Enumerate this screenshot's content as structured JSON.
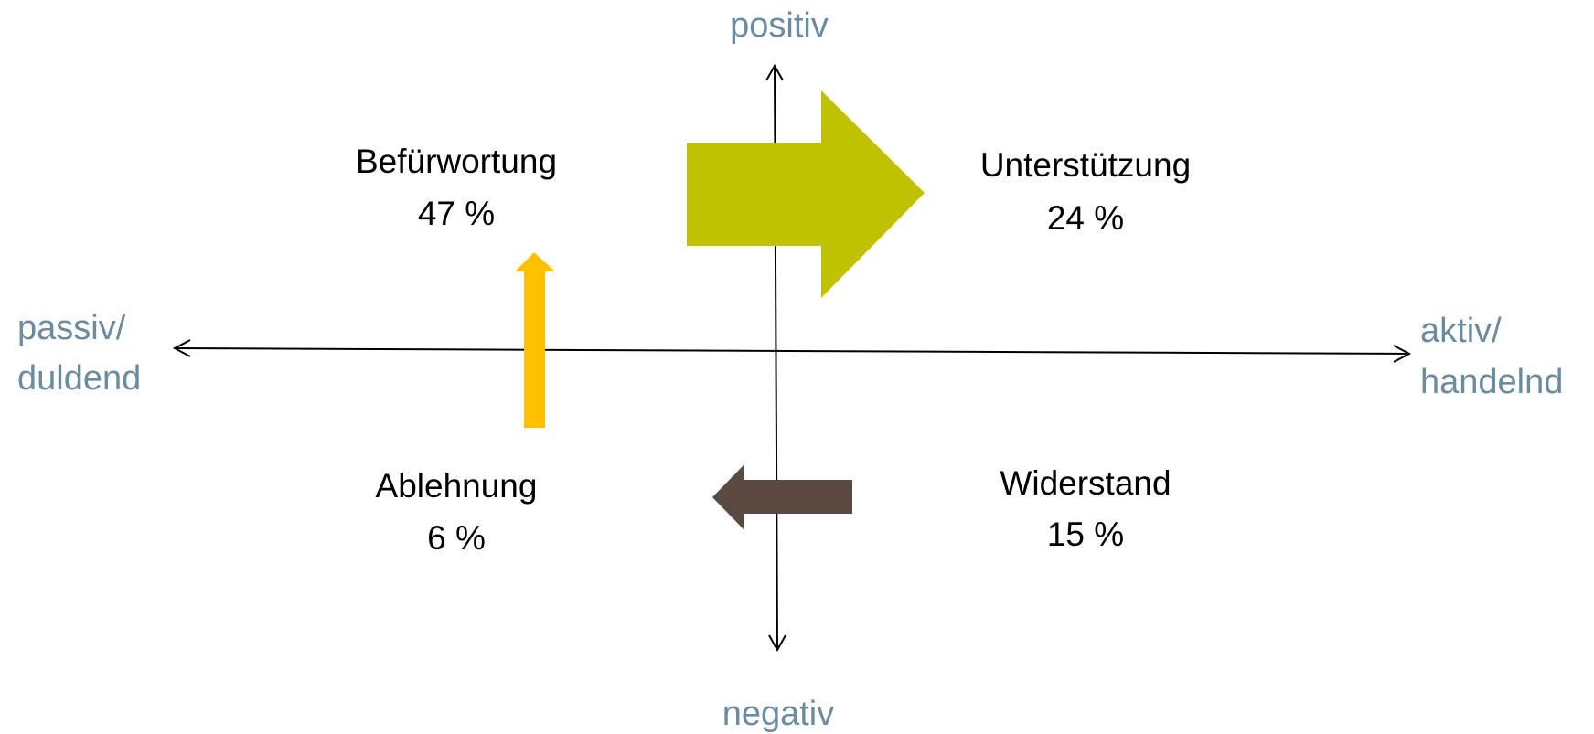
{
  "axes": {
    "top": "positiv",
    "bottom": "negativ",
    "left": [
      "passiv/",
      "duldend"
    ],
    "right": [
      "aktiv/",
      "handelnd"
    ]
  },
  "quadrants": [
    {
      "label": "Befürwortung",
      "value": "47 %"
    },
    {
      "label": "Unterstützung",
      "value": "24 %"
    },
    {
      "label": "Ablehnung",
      "value": "6 %"
    },
    {
      "label": "Widerstand",
      "value": "15 %"
    }
  ]
}
